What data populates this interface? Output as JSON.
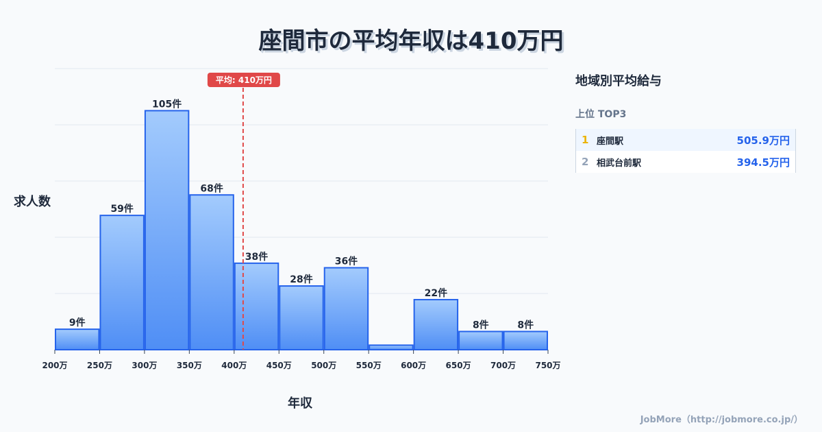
{
  "title": "座間市の平均年収は410万円",
  "sidebar": {
    "heading": "地域別平均給与",
    "subheading": "上位 TOP3",
    "items": [
      {
        "rank": "1",
        "name": "座間駅",
        "value": "505.9万円"
      },
      {
        "rank": "2",
        "name": "相武台前駅",
        "value": "394.5万円"
      }
    ]
  },
  "footer": "JobMore（http://jobmore.co.jp/）",
  "colors": {
    "bar_top": "#a3cbfd",
    "bar_bottom": "#4f8ef5",
    "bar_stroke": "#2563eb",
    "mean_line": "#e04848",
    "rank1": "#eab308",
    "rank2": "#94a3b8"
  },
  "chart_data": {
    "type": "bar",
    "title": "座間市の平均年収は410万円",
    "xlabel": "年収",
    "ylabel": "求人数",
    "bin_edges": [
      200,
      250,
      300,
      350,
      400,
      450,
      500,
      550,
      600,
      650,
      700,
      750
    ],
    "tick_labels": [
      "200万",
      "250万",
      "300万",
      "350万",
      "400万",
      "450万",
      "500万",
      "550万",
      "600万",
      "650万",
      "700万",
      "750万"
    ],
    "values": [
      9,
      59,
      105,
      68,
      38,
      28,
      36,
      2,
      22,
      8,
      8
    ],
    "data_labels": [
      "9件",
      "59件",
      "105件",
      "68件",
      "38件",
      "28件",
      "36件",
      "",
      "22件",
      "8件",
      "8件"
    ],
    "ylim": [
      0,
      123.5
    ],
    "grid": true,
    "mean": {
      "value": 410,
      "label": "平均: 410万円"
    }
  }
}
